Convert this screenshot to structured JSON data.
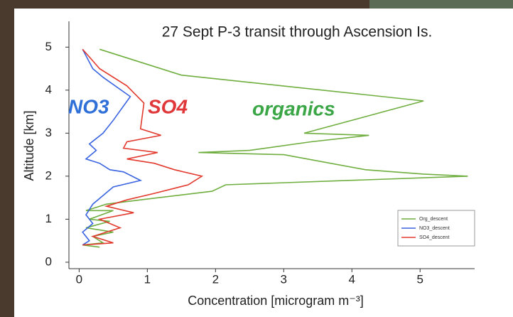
{
  "chart_data": {
    "type": "line",
    "title": "27 Sept P-3 transit through Ascension Is.",
    "x_label": "Concentration [microgram m⁻³]",
    "y_label": "Altitude [km]",
    "annotations": [
      {
        "text": "NO3",
        "color": "#2f6fd8"
      },
      {
        "text": "SO4",
        "color": "#e0383a"
      },
      {
        "text": "organics",
        "color": "#3aa646"
      }
    ],
    "xlim": [
      -0.15,
      5.8
    ],
    "ylim": [
      -0.15,
      5.6
    ],
    "xticks": [
      0,
      1,
      2,
      3,
      4,
      5
    ],
    "yticks": [
      0,
      1,
      2,
      3,
      4,
      5
    ],
    "legend": "lower right",
    "series": [
      {
        "name": "Org_descent",
        "color": "#6fae3f",
        "x": [
          0.3,
          1.5,
          5.05,
          3.3,
          4.25,
          3.4,
          2.5,
          1.75,
          3.0,
          4.2,
          5.05,
          5.7,
          2.15,
          1.95,
          0.9,
          0.4,
          0.1,
          0.5,
          0.15,
          0.45,
          0.1,
          0.5,
          0.2,
          0.35,
          0.05,
          0.3
        ],
        "y": [
          4.95,
          4.35,
          3.75,
          3.0,
          2.95,
          2.8,
          2.6,
          2.55,
          2.5,
          2.15,
          2.05,
          2.0,
          1.8,
          1.65,
          1.45,
          1.35,
          1.2,
          1.2,
          1.0,
          0.95,
          0.8,
          0.7,
          0.6,
          0.45,
          0.4,
          0.35
        ]
      },
      {
        "name": "NO3_descent",
        "color": "#3a64e0",
        "x": [
          0.05,
          0.2,
          0.35,
          0.75,
          0.5,
          0.35,
          0.15,
          0.25,
          0.1,
          0.3,
          0.45,
          0.65,
          0.9,
          0.5,
          0.35,
          0.2,
          0.1,
          0.2,
          0.05,
          0.15,
          0.05
        ],
        "y": [
          4.95,
          4.5,
          4.3,
          3.85,
          3.3,
          3.0,
          2.75,
          2.6,
          2.4,
          2.3,
          2.15,
          2.1,
          1.9,
          1.75,
          1.55,
          1.35,
          1.1,
          0.9,
          0.7,
          0.5,
          0.4
        ]
      },
      {
        "name": "SO4_descent",
        "color": "#e23a2e",
        "x": [
          0.05,
          0.3,
          0.7,
          0.95,
          0.9,
          1.2,
          0.7,
          0.65,
          1.15,
          0.7,
          1.1,
          1.4,
          1.8,
          1.6,
          1.1,
          0.7,
          0.4,
          0.8,
          0.3,
          0.6,
          0.2,
          0.5,
          0.05
        ],
        "y": [
          4.95,
          4.5,
          4.1,
          3.7,
          3.1,
          2.95,
          2.8,
          2.65,
          2.55,
          2.4,
          2.3,
          2.15,
          2.0,
          1.8,
          1.6,
          1.45,
          1.3,
          1.15,
          1.0,
          0.8,
          0.6,
          0.45,
          0.4
        ]
      }
    ]
  }
}
